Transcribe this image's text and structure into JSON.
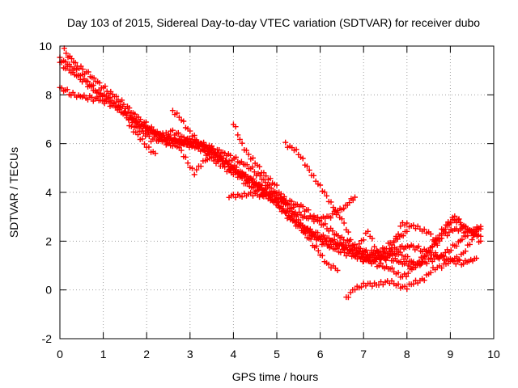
{
  "chart_data": {
    "type": "scatter",
    "title": "Day 103 of 2015, Sidereal Day-to-day VTEC variation (SDTVAR) for receiver dubo",
    "xlabel": "GPS time / hours",
    "ylabel": "SDTVAR / TECUs",
    "xlim": [
      0,
      10
    ],
    "ylim": [
      -2,
      10
    ],
    "x_ticks": [
      0,
      1,
      2,
      3,
      4,
      5,
      6,
      7,
      8,
      9,
      10
    ],
    "y_ticks": [
      -2,
      0,
      2,
      4,
      6,
      8,
      10
    ],
    "x_tick_labels": [
      "0",
      "1",
      "2",
      "3",
      "4",
      "5",
      "6",
      "7",
      "8",
      "9",
      "10"
    ],
    "y_tick_labels": [
      "-2",
      "0",
      "2",
      "4",
      "6",
      "8",
      "10"
    ],
    "grid": true,
    "marker": "plus",
    "series_color": "#ff0000",
    "series": [
      {
        "x": [
          0.0,
          0.3,
          0.6,
          0.9,
          1.2,
          1.5,
          1.8,
          2.1,
          2.4,
          2.7,
          3.0,
          3.3,
          3.6,
          3.9,
          4.2,
          4.5,
          4.8,
          5.1,
          5.4,
          5.7,
          6.0,
          6.2,
          6.4
        ],
        "y": [
          8.3,
          8.0,
          7.9,
          7.8,
          7.6,
          7.2,
          6.6,
          6.2,
          6.1,
          6.0,
          6.0,
          5.9,
          5.6,
          5.2,
          4.8,
          4.4,
          3.9,
          3.4,
          2.8,
          2.2,
          1.5,
          1.0,
          0.8
        ]
      },
      {
        "x": [
          0.0,
          0.3,
          0.6,
          0.9,
          1.2,
          1.4,
          1.7,
          2.0,
          2.3,
          2.6,
          2.9,
          3.2,
          3.5,
          3.8,
          4.1,
          4.4,
          4.7,
          5.0,
          5.3,
          5.6,
          5.9,
          6.2,
          6.5,
          6.8,
          7.1,
          7.4,
          7.7,
          8.0
        ],
        "y": [
          9.5,
          9.1,
          8.6,
          8.1,
          7.8,
          7.5,
          7.0,
          6.6,
          6.3,
          6.2,
          6.0,
          5.8,
          5.5,
          5.2,
          4.8,
          4.5,
          4.2,
          3.9,
          3.6,
          3.4,
          2.9,
          2.5,
          2.1,
          1.8,
          1.5,
          1.6,
          2.0,
          2.4
        ]
      },
      {
        "x": [
          0.0,
          0.3,
          0.6,
          0.9,
          1.2,
          1.5,
          1.8,
          2.1,
          2.4,
          2.6,
          2.9,
          3.2,
          3.5,
          3.8,
          4.1,
          4.4,
          4.7,
          5.0,
          5.3,
          5.6,
          5.9,
          6.2,
          6.5,
          6.8
        ],
        "y": [
          9.3,
          8.9,
          8.5,
          8.0,
          7.7,
          7.2,
          6.8,
          6.5,
          6.3,
          6.5,
          6.2,
          6.0,
          5.8,
          5.6,
          5.3,
          5.0,
          4.5,
          3.9,
          3.4,
          3.0,
          2.9,
          3.0,
          3.3,
          3.8
        ]
      },
      {
        "x": [
          0.1,
          0.4,
          0.7,
          1.0,
          1.3,
          1.6,
          1.9,
          2.2,
          2.5,
          2.8,
          3.1,
          3.4,
          3.7,
          4.0,
          4.3,
          4.6,
          4.9,
          5.2,
          5.5,
          5.8,
          6.1,
          6.4,
          6.7,
          7.0,
          7.3,
          7.6,
          7.9,
          8.2,
          8.5,
          8.8,
          9.1,
          9.4,
          9.7
        ],
        "y": [
          9.8,
          9.2,
          8.8,
          8.3,
          7.9,
          7.4,
          6.9,
          6.5,
          6.2,
          6.1,
          6.1,
          5.9,
          5.4,
          4.9,
          4.6,
          4.2,
          3.7,
          3.1,
          2.7,
          2.3,
          2.0,
          1.9,
          1.7,
          1.5,
          1.3,
          1.3,
          1.1,
          1.0,
          1.2,
          1.4,
          1.8,
          2.3,
          2.6
        ]
      },
      {
        "x": [
          2.6,
          2.8,
          3.0,
          3.2,
          3.4,
          3.6,
          3.8,
          4.0,
          4.2,
          4.5,
          4.8,
          5.0,
          5.2
        ],
        "y": [
          7.3,
          7.0,
          6.5,
          6.0,
          5.6,
          5.2,
          5.0,
          4.8,
          4.5,
          4.1,
          3.8,
          3.7,
          3.6
        ]
      },
      {
        "x": [
          2.3,
          2.5,
          2.7,
          2.9,
          3.1,
          3.3,
          3.5
        ],
        "y": [
          6.2,
          6.0,
          5.9,
          5.4,
          4.8,
          5.2,
          5.6
        ]
      },
      {
        "x": [
          1.6,
          1.8,
          2.0,
          2.2
        ],
        "y": [
          6.8,
          6.3,
          5.9,
          5.6
        ]
      },
      {
        "x": [
          3.9,
          4.1,
          4.3,
          4.5,
          4.7,
          4.9,
          5.1,
          5.3,
          5.5,
          5.7,
          6.0,
          6.3,
          6.6,
          6.9,
          7.2,
          7.5,
          7.8,
          8.1,
          8.3,
          8.5,
          8.8,
          9.1,
          9.4,
          9.7
        ],
        "y": [
          3.8,
          3.9,
          3.9,
          3.9,
          3.9,
          3.8,
          3.7,
          3.3,
          2.8,
          2.4,
          2.0,
          1.7,
          1.5,
          1.3,
          1.2,
          1.4,
          1.5,
          1.2,
          1.0,
          1.6,
          2.4,
          2.9,
          2.5,
          2.0
        ]
      },
      {
        "x": [
          4.0,
          4.2,
          4.4,
          4.6,
          4.8,
          5.0,
          5.2,
          5.4,
          5.6,
          5.9,
          6.2,
          6.5,
          6.8,
          7.1,
          7.4,
          7.7,
          7.9,
          8.2,
          8.5,
          8.8,
          9.1,
          9.4,
          9.7
        ],
        "y": [
          6.8,
          6.0,
          5.4,
          5.0,
          4.6,
          4.2,
          3.6,
          3.0,
          2.6,
          2.3,
          2.1,
          1.8,
          1.5,
          1.2,
          1.0,
          0.8,
          0.5,
          1.0,
          1.6,
          2.2,
          2.5,
          2.4,
          2.5
        ]
      },
      {
        "x": [
          5.2,
          5.4,
          5.6,
          5.8,
          6.0,
          6.2,
          6.4,
          6.6,
          6.8,
          7.0,
          7.2,
          7.5,
          7.8,
          8.1,
          8.4,
          8.7,
          9.0,
          9.3,
          9.6
        ],
        "y": [
          6.0,
          5.8,
          5.3,
          4.8,
          4.2,
          3.7,
          3.2,
          2.5,
          1.7,
          1.2,
          1.4,
          1.5,
          1.7,
          1.8,
          1.6,
          1.4,
          1.2,
          1.1,
          1.3
        ]
      },
      {
        "x": [
          6.6,
          6.8,
          7.0,
          7.2,
          7.4,
          7.6,
          7.8,
          8.0,
          8.2,
          8.4,
          8.6,
          8.8,
          9.0,
          9.2,
          9.4,
          9.6
        ],
        "y": [
          -0.4,
          0.1,
          0.2,
          0.2,
          0.3,
          0.3,
          0.2,
          0.1,
          0.3,
          0.5,
          0.8,
          1.0,
          1.2,
          1.3,
          1.8,
          2.3
        ]
      },
      {
        "x": [
          6.9,
          7.1,
          7.3,
          7.5,
          7.7,
          7.9,
          8.1,
          8.3,
          8.5,
          8.7,
          8.9,
          9.1,
          9.3,
          9.5,
          9.7
        ],
        "y": [
          1.9,
          2.4,
          1.6,
          1.3,
          1.9,
          2.8,
          2.6,
          2.5,
          2.4,
          1.8,
          2.7,
          3.0,
          2.6,
          2.4,
          2.2
        ]
      }
    ]
  }
}
